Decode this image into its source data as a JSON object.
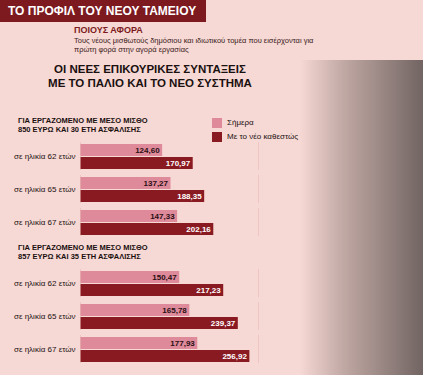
{
  "header": {
    "title": "ΤΟ ΠΡΟΦΙΛ ΤΟΥ ΝΕΟΥ ΤΑΜΕΙΟΥ",
    "section_title": "ΠΟΙΟΥΣ ΑΦΟΡΑ",
    "section_text": "Τους νέους μισθωτούς δημόσιου και ιδιωτικού τομέα που εισέρχονται για πρώτη φορά στην αγορά εργασίας",
    "heading": [
      "ΟΙ ΝΕΕΣ ΕΠΙΚΟΥΡΙΚΕΣ ΣΥΝΤΑΞΕΙΣ",
      "ΜΕ ΤΟ ΠΑΛΙΟ ΚΑΙ ΤΟ ΝΕΟ ΣΥΣΤΗΜΑ"
    ]
  },
  "chart_data": [
    {
      "type": "bar",
      "orientation": "horizontal",
      "title": "ΓΙΑ ΕΡΓΑΖΟΜΕΝΟ ΜΕ ΜΕΣΟ ΜΙΣΘΟ 850 ΕΥΡΩ ΚΑΙ 30 ΕΤΗ ΑΣΦΑΛΙΣΗΣ",
      "categories": [
        "σε ηλικία 62 ετών",
        "σε ηλικία 65 ετών",
        "σε ηλικία 67 ετών"
      ],
      "series": [
        {
          "name": "Σήμερα",
          "color": "#df8a9b",
          "values": [
            124.6,
            137.27,
            147.33
          ],
          "value_labels": [
            "124,60",
            "137,27",
            "147,33"
          ]
        },
        {
          "name": "Με το νέο καθεστώς",
          "color": "#8a1a22",
          "values": [
            170.97,
            188.35,
            202.16
          ],
          "value_labels": [
            "170,97",
            "188,35",
            "202,16"
          ]
        }
      ],
      "xlim": [
        0,
        270
      ],
      "tick_labels": "y",
      "data_labels": true,
      "legend": "top-right"
    },
    {
      "type": "bar",
      "orientation": "horizontal",
      "title": "ΓΙΑ ΕΡΓΑΖΟΜΕΝΟ ΜΕ ΜΕΣΟ ΜΙΣΘΟ 857 ΕΥΡΩ ΚΑΙ 35 ΕΤΗ ΑΣΦΑΛΙΣΗΣ",
      "categories": [
        "σε ηλικία 62 ετών",
        "σε ηλικία 65 ετών",
        "σε ηλικία 67 ετών"
      ],
      "series": [
        {
          "name": "Σήμερα",
          "color": "#df8a9b",
          "values": [
            150.47,
            165.78,
            177.93
          ],
          "value_labels": [
            "150,47",
            "165,78",
            "177,93"
          ]
        },
        {
          "name": "Με το νέο καθεστώς",
          "color": "#8a1a22",
          "values": [
            217.23,
            239.37,
            256.92
          ],
          "value_labels": [
            "217,23",
            "239,37",
            "256,92"
          ]
        }
      ],
      "xlim": [
        0,
        270
      ],
      "tick_labels": "y",
      "data_labels": true
    }
  ]
}
